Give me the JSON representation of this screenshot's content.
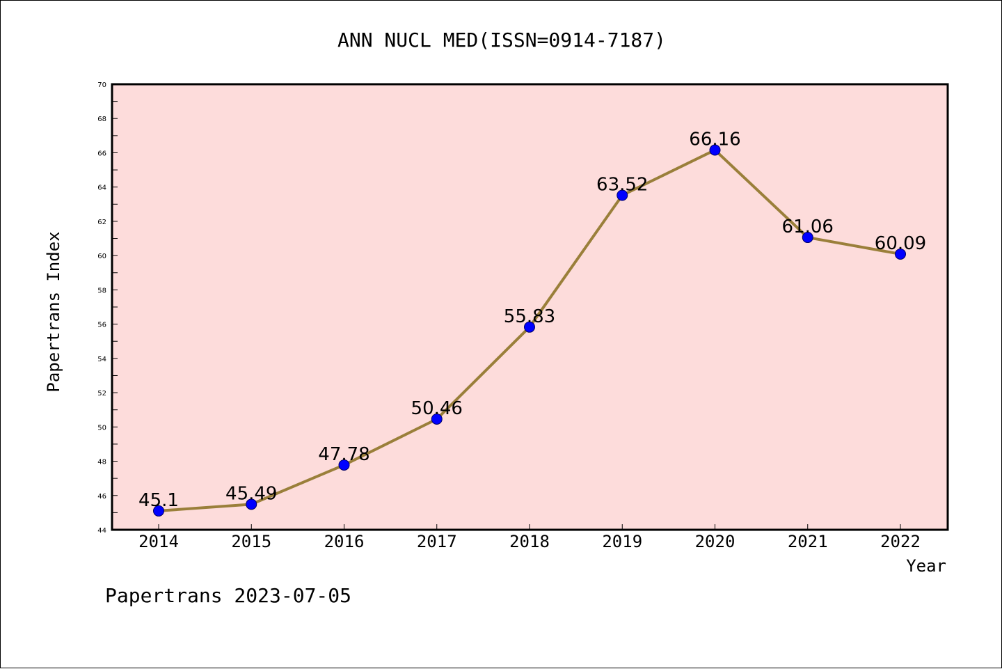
{
  "chart_data": {
    "type": "line",
    "title": "ANN NUCL MED(ISSN=0914-7187)",
    "xlabel": "Year",
    "ylabel": "Papertrans Index",
    "categories": [
      "2014",
      "2015",
      "2016",
      "2017",
      "2018",
      "2019",
      "2020",
      "2021",
      "2022"
    ],
    "values": [
      45.1,
      45.49,
      47.78,
      50.46,
      55.83,
      63.52,
      66.16,
      61.06,
      60.09
    ],
    "data_labels": [
      "45.1",
      "45.49",
      "47.78",
      "50.46",
      "55.83",
      "63.52",
      "66.16",
      "61.06",
      "60.09"
    ],
    "ylim": [
      44,
      70
    ],
    "y_ticks": [
      "44",
      "46",
      "48",
      "50",
      "52",
      "54",
      "56",
      "58",
      "60",
      "62",
      "64",
      "66",
      "68",
      "70"
    ],
    "grid": false,
    "legend": "none",
    "colors": {
      "plot_background": "#fddcdb",
      "line": "#9a7f3a",
      "marker": "#0000ff",
      "axis": "#000000"
    },
    "footer": "Papertrans 2023-07-05"
  }
}
